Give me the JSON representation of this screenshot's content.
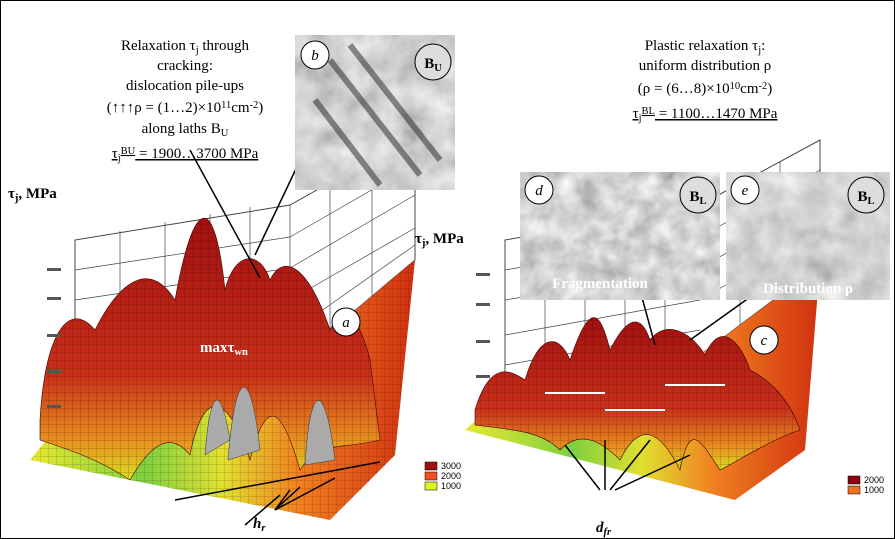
{
  "left_note": {
    "lines": [
      [
        "Relaxation τ",
        "j",
        " through"
      ],
      [
        "cracking:"
      ],
      [
        "dislocation pile-ups"
      ],
      [
        "(↑↑↑ρ = (1…2)×10",
        "11",
        "cm",
        "-2",
        ")"
      ],
      [
        "along laths B",
        "U"
      ],
      [
        "τ",
        "j",
        "BU",
        " = 1900…3700 MPa"
      ]
    ]
  },
  "right_note": {
    "lines": [
      [
        "Plastic relaxation τ",
        "j",
        ":"
      ],
      [
        "uniform distribution ρ"
      ],
      [
        "(ρ = (6…8)×10",
        "10",
        "cm",
        "-2",
        ")"
      ],
      [
        "τ",
        "j",
        "BL",
        " = 1100…1470 MPa"
      ]
    ]
  },
  "panels": {
    "b": {
      "letter": "b",
      "badge": [
        "B",
        "U"
      ]
    },
    "d": {
      "letter": "d",
      "badge": [
        "B",
        "L"
      ],
      "caption": "Fragmentation"
    },
    "e": {
      "letter": "e",
      "badge": [
        "B",
        "L"
      ],
      "caption": "Distribution ρ"
    },
    "a": {
      "letter": "a"
    },
    "c": {
      "letter": "c"
    }
  },
  "left_plot": {
    "axis_label": [
      "τ",
      "j",
      ", MPa"
    ],
    "peak_label": [
      "max",
      "τ",
      "wn"
    ],
    "spacing_label": [
      "h",
      "r"
    ],
    "legend": [
      "3000",
      "2000",
      "1000"
    ]
  },
  "right_plot": {
    "axis_label": [
      "τ",
      "j",
      ", MPa"
    ],
    "spacing_label": [
      "d",
      "fr"
    ],
    "legend": [
      "2000",
      "1000"
    ]
  }
}
